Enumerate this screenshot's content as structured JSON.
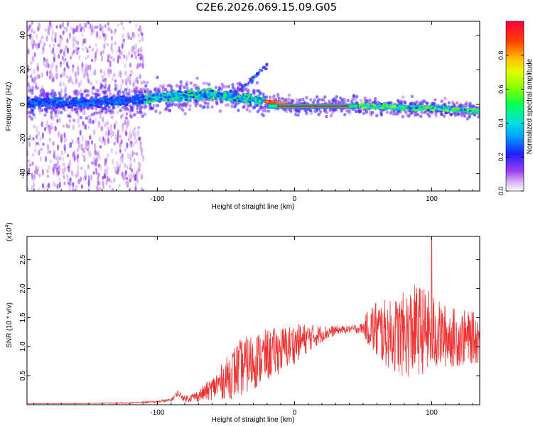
{
  "title": "C2E6.2026.069.15.09.G05",
  "chart_data": [
    {
      "type": "heatmap",
      "xlabel": "Height of straight line (km)",
      "ylabel": "Frequency (Hz)",
      "xlim": [
        -195,
        135
      ],
      "ylim": [
        -50,
        48
      ],
      "xticks": [
        -100,
        0,
        100
      ],
      "yticks": [
        -40,
        -20,
        0,
        20,
        40
      ],
      "ridge": [
        {
          "x": -195,
          "y": 1
        },
        {
          "x": -150,
          "y": 1
        },
        {
          "x": -120,
          "y": 2
        },
        {
          "x": -100,
          "y": 4
        },
        {
          "x": -80,
          "y": 5
        },
        {
          "x": -60,
          "y": 6
        },
        {
          "x": -40,
          "y": 4
        },
        {
          "x": -22,
          "y": 2
        },
        {
          "x": 0,
          "y": -1
        },
        {
          "x": 20,
          "y": -1
        },
        {
          "x": 47,
          "y": -1
        },
        {
          "x": 60,
          "y": -1
        },
        {
          "x": 80,
          "y": -2
        },
        {
          "x": 100,
          "y": -2
        },
        {
          "x": 120,
          "y": -3
        },
        {
          "x": 135,
          "y": -4
        }
      ],
      "colorbar": {
        "label": "Normalized spectral amplitude",
        "ticks": [
          "0.0",
          "0.2",
          "0.4",
          "0.6",
          "0.8"
        ],
        "range": [
          0,
          1
        ]
      }
    },
    {
      "type": "line",
      "xlabel": "Height of straight line (km)",
      "ylabel": "SNR (10 * v/v)",
      "scale_label": "(x10",
      "scale_exp": "4",
      "scale_close": ")",
      "xlim": [
        -195,
        135
      ],
      "ylim": [
        0,
        2.9
      ],
      "xticks": [
        -100,
        0,
        100
      ],
      "yticks": [
        "0.5",
        "1.0",
        "1.5",
        "2.0",
        "2.5"
      ],
      "color": "#ee3333",
      "series": [
        {
          "x": [
            -195,
            -160,
            -120,
            -100,
            -90,
            -85,
            -80,
            -70,
            -60,
            -50,
            -45,
            -40,
            -30,
            -20,
            -10,
            0,
            10,
            20,
            30,
            40,
            50,
            55,
            60,
            70,
            80,
            85,
            90,
            95,
            100,
            105,
            110,
            120,
            130,
            135
          ],
          "y": [
            0.02,
            0.02,
            0.03,
            0.05,
            0.08,
            0.2,
            0.1,
            0.15,
            0.28,
            0.45,
            0.55,
            0.62,
            0.75,
            0.85,
            0.95,
            1.05,
            1.15,
            1.22,
            1.28,
            1.3,
            1.32,
            1.35,
            1.28,
            1.2,
            1.2,
            1.25,
            1.3,
            1.28,
            1.22,
            1.2,
            1.18,
            1.15,
            1.15,
            1.15
          ],
          "spread": [
            0.0,
            0.0,
            0.01,
            0.02,
            0.03,
            0.05,
            0.05,
            0.1,
            0.2,
            0.35,
            0.45,
            0.5,
            0.5,
            0.45,
            0.4,
            0.35,
            0.25,
            0.15,
            0.08,
            0.06,
            0.1,
            0.4,
            0.55,
            0.6,
            0.75,
            0.8,
            0.8,
            0.75,
            0.7,
            0.6,
            0.55,
            0.5,
            0.45,
            0.45
          ]
        }
      ],
      "peak": {
        "x": 100,
        "y": 2.9
      }
    }
  ]
}
